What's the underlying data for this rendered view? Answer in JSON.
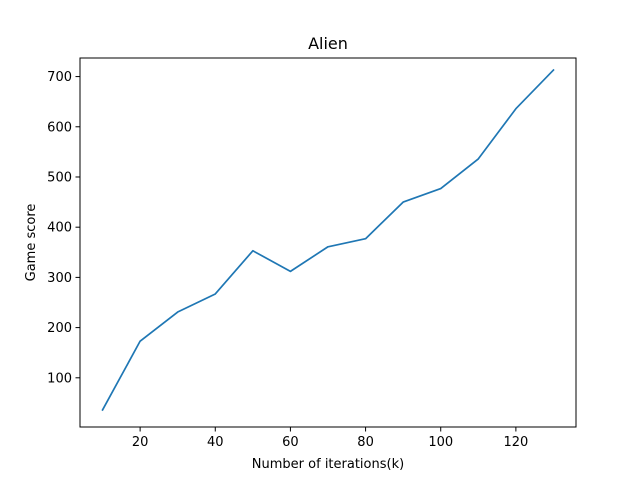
{
  "chart_data": {
    "type": "line",
    "title": "Alien",
    "xlabel": "Number of iterations(k)",
    "ylabel": "Game score",
    "xlim": [
      4,
      136
    ],
    "ylim": [
      2,
      737
    ],
    "xticks": [
      20,
      40,
      60,
      80,
      100,
      120
    ],
    "yticks": [
      100,
      200,
      300,
      400,
      500,
      600,
      700
    ],
    "grid": false,
    "series": [
      {
        "color": "#1f77b4",
        "x": [
          10,
          20,
          30,
          40,
          50,
          60,
          70,
          80,
          90,
          100,
          110,
          120,
          130
        ],
        "y": [
          36,
          173,
          231,
          267,
          353,
          312,
          361,
          377,
          450,
          477,
          536,
          636,
          713
        ]
      }
    ]
  }
}
